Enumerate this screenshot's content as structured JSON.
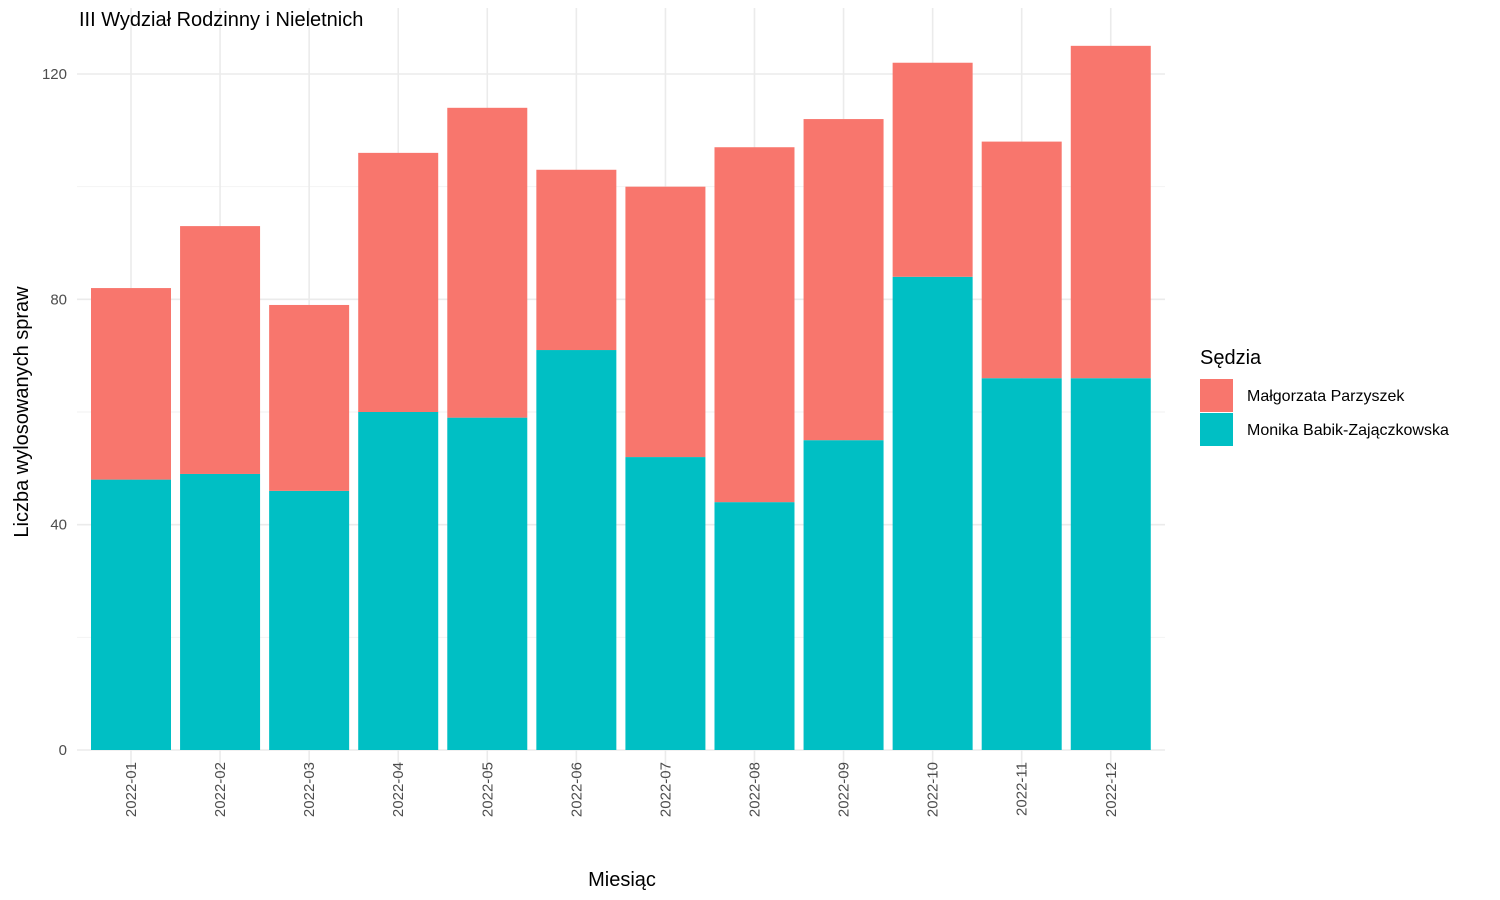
{
  "chart_data": {
    "type": "bar",
    "stacked": true,
    "title": "III Wydział Rodzinny i Nieletnich",
    "xlabel": "Miesiąc",
    "ylabel": "Liczba wylosowanych spraw",
    "categories": [
      "2022-01",
      "2022-02",
      "2022-03",
      "2022-04",
      "2022-05",
      "2022-06",
      "2022-07",
      "2022-08",
      "2022-09",
      "2022-10",
      "2022-11",
      "2022-12"
    ],
    "series": [
      {
        "name": "Monika Babik-Zajączkowska",
        "color": "#00BFC4",
        "values": [
          48,
          49,
          46,
          60,
          59,
          71,
          52,
          44,
          55,
          84,
          66,
          66
        ]
      },
      {
        "name": "Małgorzata Parzyszek",
        "color": "#F8766D",
        "values": [
          34,
          44,
          33,
          46,
          55,
          32,
          48,
          63,
          57,
          38,
          42,
          59
        ]
      }
    ],
    "ylim": [
      0,
      126
    ],
    "yticks": [
      0,
      40,
      80,
      120
    ],
    "yticks_minor": [
      20,
      60,
      100
    ],
    "grid": true,
    "legend": {
      "title": "Sędzia",
      "position": "right",
      "entries": [
        {
          "label": "Małgorzata Parzyszek",
          "color": "#F8766D"
        },
        {
          "label": "Monika Babik-Zajączkowska",
          "color": "#00BFC4"
        }
      ]
    }
  }
}
